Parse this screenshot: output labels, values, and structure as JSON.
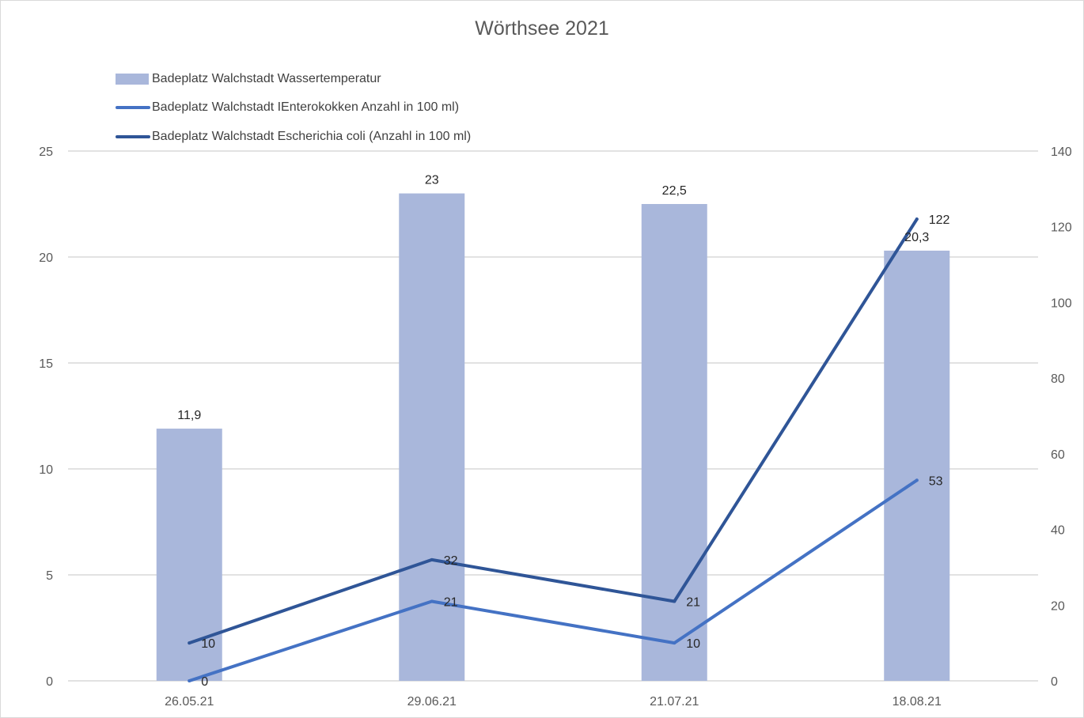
{
  "chart_data": {
    "type": "bar",
    "title": "Wörthsee 2021",
    "categories": [
      "26.05.21",
      "29.06.21",
      "21.07.21",
      "18.08.21"
    ],
    "y_left": {
      "min": 0,
      "max": 25,
      "ticks": [
        0,
        5,
        10,
        15,
        20,
        25
      ]
    },
    "y_right": {
      "min": 0,
      "max": 140,
      "ticks": [
        0,
        20,
        40,
        60,
        80,
        100,
        120,
        140
      ]
    },
    "grid": true,
    "legend_position": "top-left",
    "series": [
      {
        "name": "Badeplatz Walchstadt Wassertemperatur",
        "kind": "bar",
        "axis": "left",
        "color": "#a9b7db",
        "values": [
          11.9,
          23,
          22.5,
          20.3
        ],
        "labels": [
          "11,9",
          "23",
          "22,5",
          "20,3"
        ]
      },
      {
        "name": "Badeplatz Walchstadt IEnterokokken Anzahl in 100 ml)",
        "kind": "line",
        "axis": "right",
        "color": "#4472c4",
        "values": [
          0,
          21,
          10,
          53
        ],
        "labels": [
          "0",
          "21",
          "10",
          "53"
        ]
      },
      {
        "name": "Badeplatz Walchstadt Escherichia coli  (Anzahl in 100 ml)",
        "kind": "line",
        "axis": "right",
        "color": "#2f5597",
        "values": [
          10,
          32,
          21,
          122
        ],
        "labels": [
          "10",
          "32",
          "21",
          "122"
        ]
      }
    ]
  }
}
